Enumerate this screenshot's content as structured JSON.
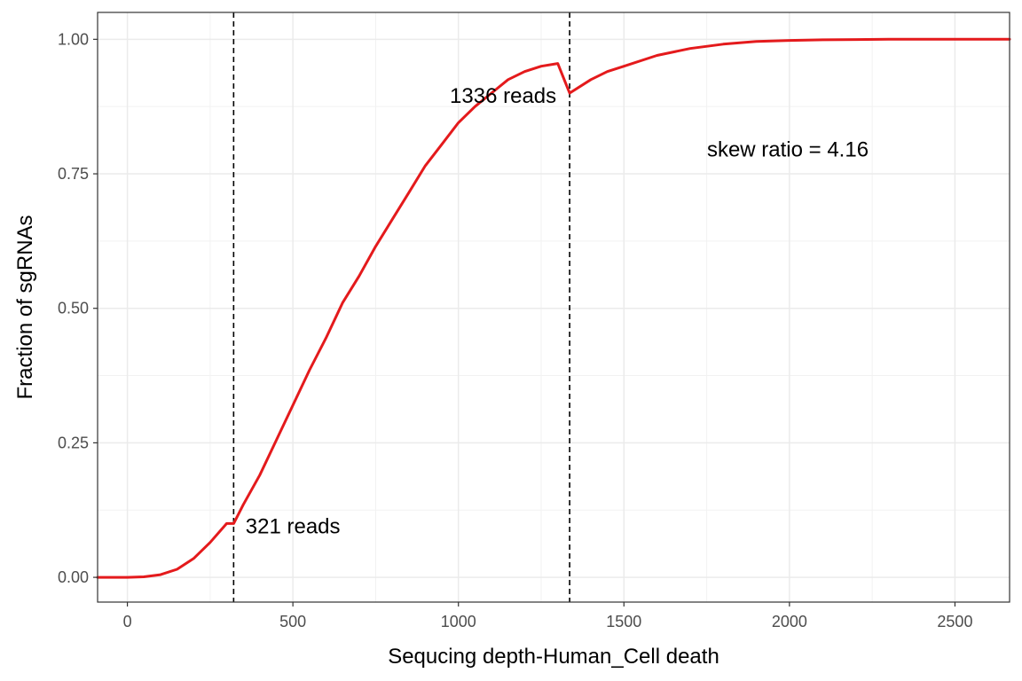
{
  "chart_data": {
    "type": "line",
    "title": "",
    "xlabel": "Sequcing depth-Human_Cell death",
    "ylabel": "Fraction of sgRNAs",
    "xlim": [
      -90,
      2665
    ],
    "ylim": [
      -0.046,
      1.05
    ],
    "x_ticks": [
      0,
      500,
      1000,
      1500,
      2000,
      2500
    ],
    "x_tick_labels": [
      "0",
      "500",
      "1000",
      "1500",
      "2000",
      "2500"
    ],
    "y_ticks": [
      0,
      0.25,
      0.5,
      0.75,
      1.0
    ],
    "y_tick_labels": [
      "0.00",
      "0.25",
      "0.50",
      "0.75",
      "1.00"
    ],
    "grid": true,
    "legend": "none",
    "series": [
      {
        "color": "#e41a1c",
        "x": [
          -90,
          0,
          50,
          100,
          150,
          200,
          250,
          300,
          321,
          350,
          400,
          450,
          500,
          550,
          600,
          650,
          700,
          750,
          800,
          850,
          900,
          950,
          1000,
          1050,
          1100,
          1150,
          1200,
          1250,
          1300,
          1336,
          1400,
          1450,
          1500,
          1600,
          1700,
          1800,
          1900,
          2000,
          2100,
          2200,
          2300,
          2400,
          2500,
          2600,
          2665
        ],
        "y": [
          0,
          0,
          0.001,
          0.005,
          0.015,
          0.035,
          0.065,
          0.1,
          0.1,
          0.135,
          0.19,
          0.255,
          0.32,
          0.385,
          0.445,
          0.51,
          0.56,
          0.615,
          0.665,
          0.715,
          0.765,
          0.805,
          0.845,
          0.875,
          0.9,
          0.925,
          0.94,
          0.95,
          0.955,
          0.9,
          0.925,
          0.94,
          0.95,
          0.97,
          0.983,
          0.991,
          0.996,
          0.998,
          0.999,
          0.9995,
          1.0,
          1.0,
          1.0,
          1.0,
          1.0
        ]
      }
    ],
    "vlines": [
      {
        "x": 321,
        "color": "#000000",
        "style": "dashed"
      },
      {
        "x": 1336,
        "color": "#000000",
        "style": "dashed"
      }
    ],
    "annotations": [
      {
        "text": "321 reads",
        "x": 500,
        "y": 0.095
      },
      {
        "text": "1336 reads",
        "x": 1135,
        "y": 0.895
      },
      {
        "text": "skew ratio = 4.16",
        "x": 1995,
        "y": 0.795
      }
    ]
  }
}
